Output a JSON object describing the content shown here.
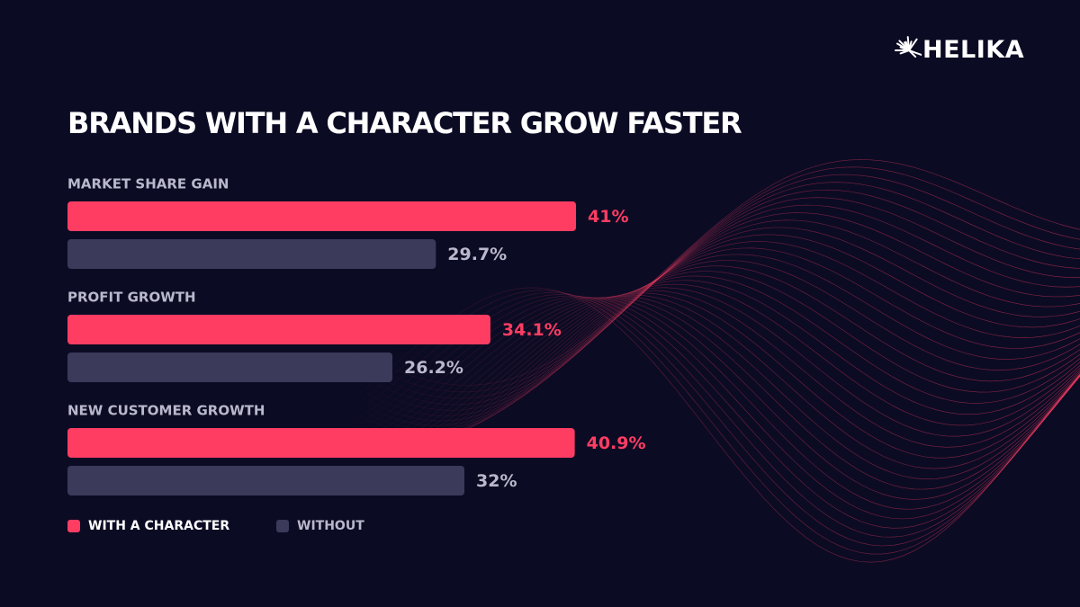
{
  "brand": {
    "name": "HELIKA"
  },
  "colors": {
    "background": "#0c0b24",
    "with_character": "#ff3d63",
    "without": "#3b3a5a",
    "without_label": "#b9b8cc",
    "group_label": "#b9b8cc",
    "wave": "#ff3d63"
  },
  "chart_data": {
    "type": "bar",
    "orientation": "horizontal",
    "title": "BRANDS WITH A CHARACTER GROW FASTER",
    "categories": [
      "MARKET SHARE GAIN",
      "PROFIT GROWTH",
      "NEW CUSTOMER GROWTH"
    ],
    "series": [
      {
        "name": "WITH A CHARACTER",
        "values": [
          41,
          34.1,
          40.9
        ],
        "labels": [
          "41%",
          "34.1%",
          "40.9%"
        ],
        "color": "#ff3d63"
      },
      {
        "name": "WITHOUT",
        "values": [
          29.7,
          26.2,
          32
        ],
        "labels": [
          "29.7%",
          "26.2%",
          "32%"
        ],
        "color": "#3b3a5a"
      }
    ],
    "legend": "bottom-left",
    "grid": false,
    "axes_visible": false,
    "xlim": [
      0,
      41
    ]
  }
}
